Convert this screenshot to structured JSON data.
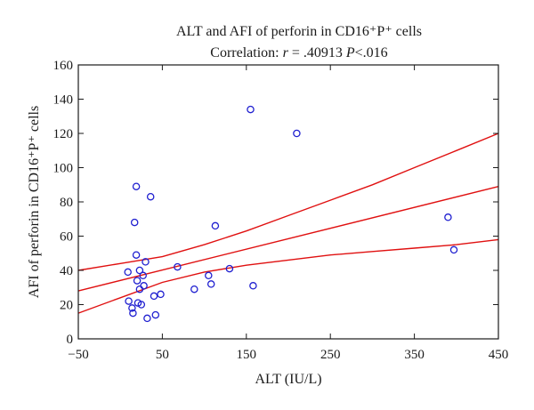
{
  "chart_data": {
    "type": "scatter",
    "title": "ALT and AFI of perforin in CD16⁺P⁺ cells",
    "subtitle": {
      "prefix": "Correlation: ",
      "r_symbol": "r",
      "r_eq": " = .40913 ",
      "p_symbol": "P",
      "p_value": "<.016"
    },
    "xlabel": "ALT (IU/L)",
    "ylabel": "AFI of perforin in CD16⁺P⁺ cells",
    "xlim": [
      -50,
      450
    ],
    "ylim": [
      0,
      160
    ],
    "x_ticks": [
      -50,
      50,
      150,
      250,
      350,
      450
    ],
    "x_tick_labels": [
      "−50",
      "50",
      "150",
      "250",
      "350",
      "450"
    ],
    "y_ticks": [
      0,
      20,
      40,
      60,
      80,
      100,
      120,
      140,
      160
    ],
    "y_tick_labels": [
      "0",
      "20",
      "40",
      "60",
      "80",
      "100",
      "120",
      "140",
      "160"
    ],
    "grid": false,
    "points": [
      {
        "x": 9,
        "y": 39
      },
      {
        "x": 10,
        "y": 22
      },
      {
        "x": 14,
        "y": 18
      },
      {
        "x": 15,
        "y": 15
      },
      {
        "x": 17,
        "y": 68
      },
      {
        "x": 19,
        "y": 89
      },
      {
        "x": 19,
        "y": 49
      },
      {
        "x": 20,
        "y": 34
      },
      {
        "x": 21,
        "y": 21
      },
      {
        "x": 23,
        "y": 29
      },
      {
        "x": 23,
        "y": 40
      },
      {
        "x": 25,
        "y": 20
      },
      {
        "x": 27,
        "y": 37
      },
      {
        "x": 28,
        "y": 31
      },
      {
        "x": 30,
        "y": 45
      },
      {
        "x": 32,
        "y": 12
      },
      {
        "x": 36,
        "y": 83
      },
      {
        "x": 40,
        "y": 25
      },
      {
        "x": 42,
        "y": 14
      },
      {
        "x": 48,
        "y": 26
      },
      {
        "x": 68,
        "y": 42
      },
      {
        "x": 88,
        "y": 29
      },
      {
        "x": 105,
        "y": 37
      },
      {
        "x": 108,
        "y": 32
      },
      {
        "x": 113,
        "y": 66
      },
      {
        "x": 130,
        "y": 41
      },
      {
        "x": 155,
        "y": 134
      },
      {
        "x": 158,
        "y": 31
      },
      {
        "x": 210,
        "y": 120
      },
      {
        "x": 390,
        "y": 71
      },
      {
        "x": 397,
        "y": 52
      }
    ],
    "regression_line": {
      "x": [
        -50,
        450
      ],
      "y": [
        28,
        89
      ]
    },
    "confidence_band_upper": {
      "x": [
        -50,
        0,
        50,
        100,
        150,
        200,
        250,
        300,
        350,
        400,
        450
      ],
      "y": [
        40,
        44,
        48,
        55,
        63,
        72,
        81,
        90,
        100,
        110,
        120
      ]
    },
    "confidence_band_lower": {
      "x": [
        -50,
        0,
        50,
        100,
        150,
        200,
        250,
        300,
        350,
        400,
        450
      ],
      "y": [
        15,
        24,
        33,
        39,
        43,
        46,
        49,
        51,
        53,
        55,
        58
      ]
    },
    "colors": {
      "points": "#2020d0",
      "lines": "#e01010",
      "axes": "#1a1a1a"
    }
  }
}
